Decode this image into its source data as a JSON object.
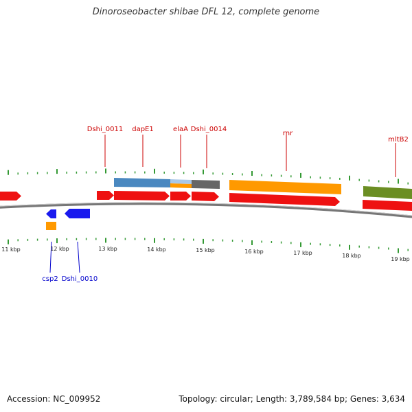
{
  "title": "Dinoroseobacter shibae DFL 12, complete genome",
  "footer": {
    "accession": "Accession: NC_009952",
    "topology": "Topology: circular; Length: 3,789,584 bp; Genes: 3,634"
  },
  "colors": {
    "forward_gene": "#ee1111",
    "reverse_gene": "#1a1aee",
    "label_forward": "#cc0000",
    "label_reverse": "#0000cc",
    "tick": "#339933",
    "backbone": "#777777",
    "rna_orange": "#ff9900",
    "feature_blue": "#4a88c0",
    "feature_grey": "#666666",
    "feature_lightblue": "#a9c8e8",
    "feature_olive": "#6b8e23"
  },
  "scale_labels": [
    "11 kbp",
    "12 kbp",
    "13 kbp",
    "14 kbp",
    "15 kbp",
    "16 kbp",
    "17 kbp",
    "18 kbp",
    "19 kbp"
  ],
  "forward_labels": [
    "Dshi_0011",
    "dapE1",
    "elaA",
    "Dshi_0014",
    "rnr",
    "mltB2"
  ],
  "reverse_labels": [
    "csp2",
    "Dshi_0010"
  ]
}
